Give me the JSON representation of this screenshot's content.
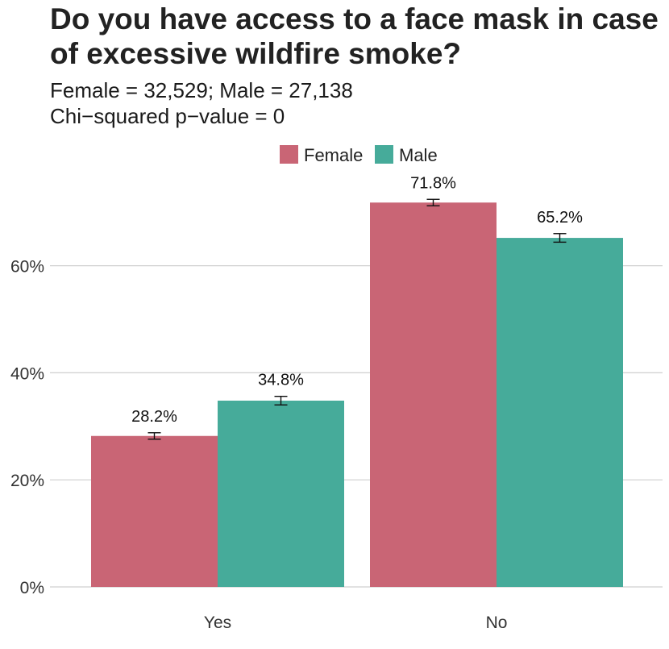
{
  "chart_data": {
    "type": "bar",
    "title": "Do you have access to a face mask in case of excessive wildfire smoke?",
    "subtitle_lines": [
      "Female = 32,529; Male = 27,138",
      "Chi−squared p−value = 0"
    ],
    "categories": [
      "Yes",
      "No"
    ],
    "series": [
      {
        "name": "Female",
        "color": "#c96575",
        "values": [
          28.2,
          71.8
        ],
        "error": [
          0.6,
          0.6
        ],
        "labels": [
          "28.2%",
          "71.8%"
        ]
      },
      {
        "name": "Male",
        "color": "#46ab9a",
        "values": [
          34.8,
          65.2
        ],
        "error": [
          0.8,
          0.8
        ],
        "labels": [
          "34.8%",
          "65.2%"
        ]
      }
    ],
    "yticks": [
      0,
      20,
      40,
      60
    ],
    "ytick_labels": [
      "0%",
      "20%",
      "40%",
      "60%"
    ],
    "ylim": [
      0,
      75
    ],
    "grid": true,
    "legend_position": "top"
  }
}
